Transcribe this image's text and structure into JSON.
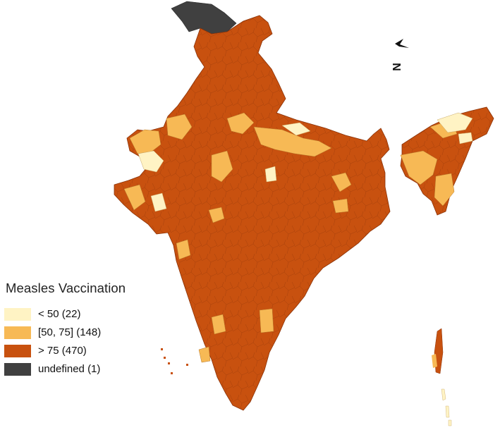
{
  "map": {
    "legend_title": "Measles Vaccination",
    "legend": [
      {
        "label": "< 50 (22)",
        "color": "#fff3c4"
      },
      {
        "label": "[50, 75] (148)",
        "color": "#f7b955"
      },
      {
        "label": "> 75 (470)",
        "color": "#c8510f"
      },
      {
        "label": "undefined (1)",
        "color": "#404040"
      }
    ],
    "north_label": "N",
    "icons": {
      "north": "north-arrow-icon"
    }
  }
}
